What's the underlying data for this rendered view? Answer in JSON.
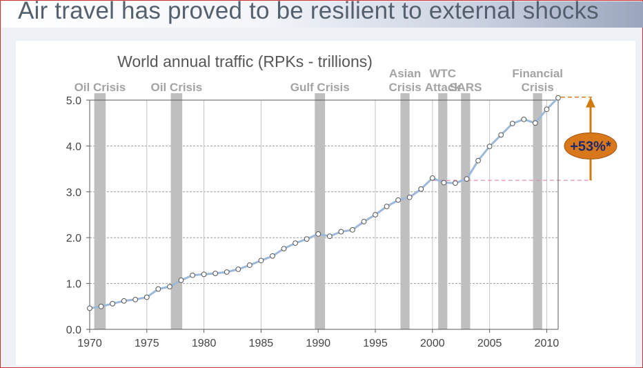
{
  "slide": {
    "title": "Air travel has proved to be resilient to external shocks"
  },
  "colors": {
    "line": "#9db8d8",
    "marker_fill": "#ffffff",
    "marker_stroke": "#555555",
    "crisis_bar": "#bfbfbf",
    "arrow": "#d07a12",
    "badge_fill": "#d9781a",
    "badge_text": "#1f2a6b",
    "ref_line_low": "#e080b0",
    "ref_line_high": "#d07a12"
  },
  "chart_data": {
    "type": "line",
    "title": "World annual traffic (RPKs - trillions)",
    "xlabel": "",
    "ylabel": "",
    "xlim": [
      1970,
      2011
    ],
    "ylim": [
      0,
      5
    ],
    "x_ticks": [
      1970,
      1975,
      1980,
      1985,
      1990,
      1995,
      2000,
      2005,
      2010
    ],
    "y_ticks": [
      0,
      1,
      2,
      3,
      4,
      5
    ],
    "y_tick_labels": [
      "0.0",
      "1.0",
      "2.0",
      "3.0",
      "4.0",
      "5.0"
    ],
    "grid": true,
    "series": [
      {
        "name": "World annual traffic (RPKs - trillions)",
        "x": [
          1970,
          1971,
          1972,
          1973,
          1974,
          1975,
          1976,
          1977,
          1978,
          1979,
          1980,
          1981,
          1982,
          1983,
          1984,
          1985,
          1986,
          1987,
          1988,
          1989,
          1990,
          1991,
          1992,
          1993,
          1994,
          1995,
          1996,
          1997,
          1998,
          1999,
          2000,
          2001,
          2002,
          2003,
          2004,
          2005,
          2006,
          2007,
          2008,
          2009,
          2010,
          2011
        ],
        "values": [
          0.46,
          0.5,
          0.56,
          0.62,
          0.65,
          0.7,
          0.88,
          0.93,
          1.07,
          1.18,
          1.2,
          1.22,
          1.25,
          1.31,
          1.4,
          1.5,
          1.6,
          1.76,
          1.88,
          1.97,
          2.08,
          2.03,
          2.13,
          2.17,
          2.35,
          2.5,
          2.68,
          2.82,
          2.88,
          3.06,
          3.3,
          3.2,
          3.19,
          3.28,
          3.68,
          3.99,
          4.24,
          4.49,
          4.58,
          4.5,
          4.8,
          5.05
        ]
      }
    ],
    "events": [
      {
        "name": "Oil Crisis",
        "lines": [
          "Oil Crisis"
        ],
        "start": 1970.4,
        "end": 1971.4
      },
      {
        "name": "Oil Crisis",
        "lines": [
          "Oil Crisis"
        ],
        "start": 1977.1,
        "end": 1978.1
      },
      {
        "name": "Gulf Crisis",
        "lines": [
          "Gulf Crisis"
        ],
        "start": 1989.7,
        "end": 1990.6
      },
      {
        "name": "Asian Crisis",
        "lines": [
          "Asian",
          "Crisis"
        ],
        "start": 1997.2,
        "end": 1998.0
      },
      {
        "name": "WTC Attack",
        "lines": [
          "WTC",
          "Attack"
        ],
        "start": 2000.5,
        "end": 2001.3
      },
      {
        "name": "SARS",
        "lines": [
          "SARS"
        ],
        "start": 2002.5,
        "end": 2003.3
      },
      {
        "name": "Financial Crisis",
        "lines": [
          "Financial",
          "Crisis"
        ],
        "start": 2008.8,
        "end": 2009.6
      }
    ],
    "annotation": {
      "label": "+53%*",
      "from_value": 3.25,
      "to_value": 5.05,
      "ref_start_year": 2000
    }
  }
}
